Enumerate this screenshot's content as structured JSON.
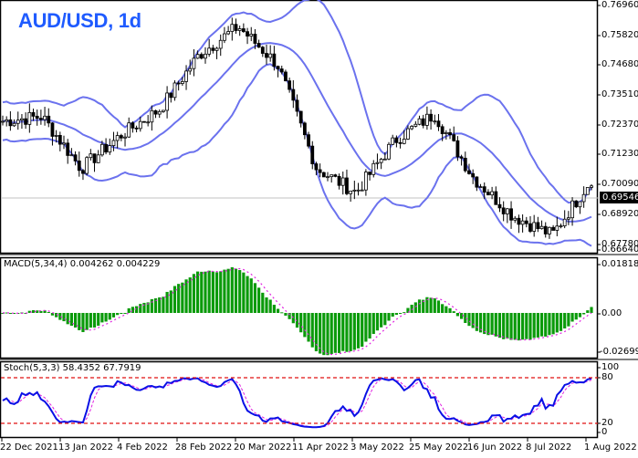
{
  "title": "AUD/USD, 1d",
  "colors": {
    "title": "#1f5bff",
    "bollinger": "#6b72ee",
    "candle": "#000000",
    "macd_hist": "#0a9a0a",
    "macd_signal": "#e020e0",
    "stoch_main": "#0a10e6",
    "stoch_signal": "#e020e0",
    "stoch_levels": "#e01010",
    "current_price_line": "#c0c0c0"
  },
  "price_axis": {
    "ticks": [
      "0.76960",
      "0.75820",
      "0.74680",
      "0.73510",
      "0.72370",
      "0.71230",
      "0.70090",
      "0.68920",
      "0.67780",
      "0.66640"
    ],
    "current_price": "0.69546"
  },
  "macd": {
    "label": "MACD(5,34,4) 0.004262 0.004229",
    "ticks": [
      "0.018188",
      "0.00",
      "-0.026994"
    ]
  },
  "stoch": {
    "label": "Stoch(5,3,3) 58.4352 67.7919",
    "ticks": [
      "100",
      "80",
      "20",
      "0"
    ]
  },
  "date_axis": [
    "22 Dec 2021",
    "13 Jan 2022",
    "4 Feb 2022",
    "28 Feb 2022",
    "20 Mar 2022",
    "11 Apr 2022",
    "3 May 2022",
    "25 May 2022",
    "16 Jun 2022",
    "8 Jul 2022",
    "1 Aug 2022"
  ],
  "chart_data": [
    {
      "type": "candlestick",
      "title": "AUD/USD, 1d",
      "indicator": "Bollinger Bands",
      "x_range": [
        "22 Dec 2021",
        "1 Aug 2022"
      ],
      "ylim": [
        0.6664,
        0.7696
      ],
      "yticks": [
        0.7696,
        0.7582,
        0.7468,
        0.7351,
        0.7237,
        0.7123,
        0.7009,
        0.6892,
        0.6778,
        0.6664
      ],
      "current_price": 0.69546,
      "approx_close_path": [
        {
          "date": "22 Dec 2021",
          "close": 0.72
        },
        {
          "date": "13 Jan 2022",
          "close": 0.722
        },
        {
          "date": "28 Jan 2022",
          "close": 0.7
        },
        {
          "date": "4 Feb 2022",
          "close": 0.714
        },
        {
          "date": "28 Feb 2022",
          "close": 0.725
        },
        {
          "date": "20 Mar 2022",
          "close": 0.748
        },
        {
          "date": "5 Apr 2022",
          "close": 0.76
        },
        {
          "date": "11 Apr 2022",
          "close": 0.744
        },
        {
          "date": "3 May 2022",
          "close": 0.7
        },
        {
          "date": "12 May 2022",
          "close": 0.69
        },
        {
          "date": "25 May 2022",
          "close": 0.712
        },
        {
          "date": "3 Jun 2022",
          "close": 0.723
        },
        {
          "date": "16 Jun 2022",
          "close": 0.696
        },
        {
          "date": "8 Jul 2022",
          "close": 0.68
        },
        {
          "date": "14 Jul 2022",
          "close": 0.672
        },
        {
          "date": "1 Aug 2022",
          "close": 0.6955
        }
      ]
    },
    {
      "type": "bar",
      "title": "MACD(5,34,4)",
      "values_label": {
        "macd": 0.004262,
        "signal": 0.004229
      },
      "ylim": [
        -0.026994,
        0.018188
      ],
      "yticks": [
        0.018188,
        0.0,
        -0.026994
      ],
      "series": [
        {
          "name": "MACD histogram",
          "style": "green bars"
        },
        {
          "name": "Signal",
          "style": "magenta dotted line"
        }
      ]
    },
    {
      "type": "line",
      "title": "Stoch(5,3,3)",
      "values_label": {
        "main": 58.4352,
        "signal": 67.7919
      },
      "ylim": [
        0,
        100
      ],
      "yticks": [
        100,
        80,
        20,
        0
      ],
      "levels": [
        80,
        20
      ],
      "series": [
        {
          "name": "%K",
          "style": "blue solid"
        },
        {
          "name": "%D",
          "style": "magenta dashed"
        }
      ]
    }
  ]
}
